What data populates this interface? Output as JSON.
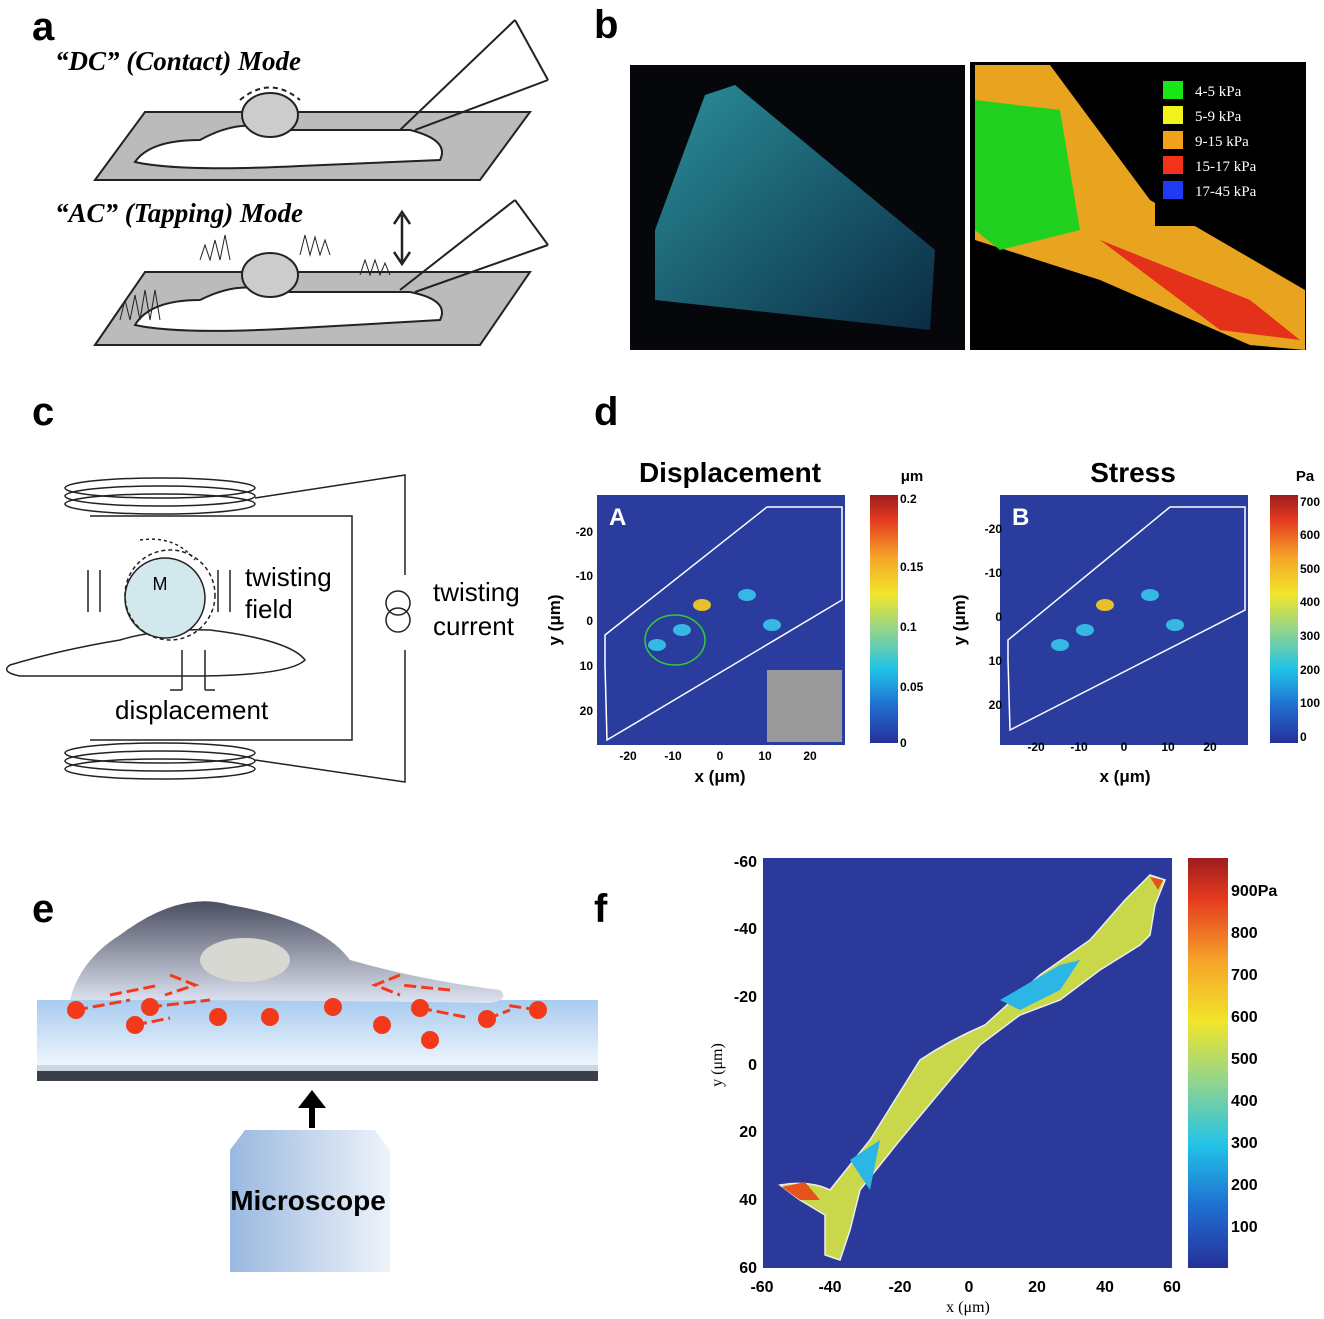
{
  "panels": {
    "a": {
      "label": "a",
      "top_title": "“DC” (Contact) Mode",
      "bottom_title": "“AC” (Tapping) Mode"
    },
    "b": {
      "label": "b",
      "legend": [
        "4-5 kPa",
        "5-9 kPa",
        "9-15 kPa",
        "15-17 kPa",
        "17-45 kPa"
      ]
    },
    "c": {
      "label": "c",
      "bead": "M",
      "field_line1": "twisting",
      "field_line2": "field",
      "current_line1": "twisting",
      "current_line2": "current",
      "displacement": "displacement"
    },
    "d": {
      "label": "d",
      "plots": [
        {
          "title": "Displacement",
          "letter": "A",
          "unit": "μm",
          "colorbar_ticks": [
            "0.2",
            "0.15",
            "0.1",
            "0.05",
            "0"
          ],
          "xticks": [
            "-20",
            "-10",
            "0",
            "10",
            "20"
          ],
          "yticks": [
            "-20",
            "-10",
            "0",
            "10",
            "20"
          ],
          "xlabel": "x (μm)",
          "ylabel": "y (μm)"
        },
        {
          "title": "Stress",
          "letter": "B",
          "unit": "Pa",
          "colorbar_ticks": [
            "700",
            "600",
            "500",
            "400",
            "300",
            "200",
            "100",
            "0"
          ],
          "xticks": [
            "-20",
            "-10",
            "0",
            "10",
            "20"
          ],
          "yticks": [
            "-20",
            "-10",
            "0",
            "10",
            "20"
          ],
          "xlabel": "x (μm)",
          "ylabel": "y (μm)"
        }
      ]
    },
    "e": {
      "label": "e",
      "microscope": "Microscope"
    },
    "f": {
      "label": "f",
      "xticks": [
        "-60",
        "-40",
        "-20",
        "0",
        "20",
        "40",
        "60"
      ],
      "yticks": [
        "-60",
        "-40",
        "-20",
        "0",
        "20",
        "40",
        "60"
      ],
      "xlabel": "x (μm)",
      "ylabel": "y (μm)",
      "colorbar_ticks": [
        "900Pa",
        "800",
        "700",
        "600",
        "500",
        "400",
        "300",
        "200",
        "100"
      ]
    }
  }
}
